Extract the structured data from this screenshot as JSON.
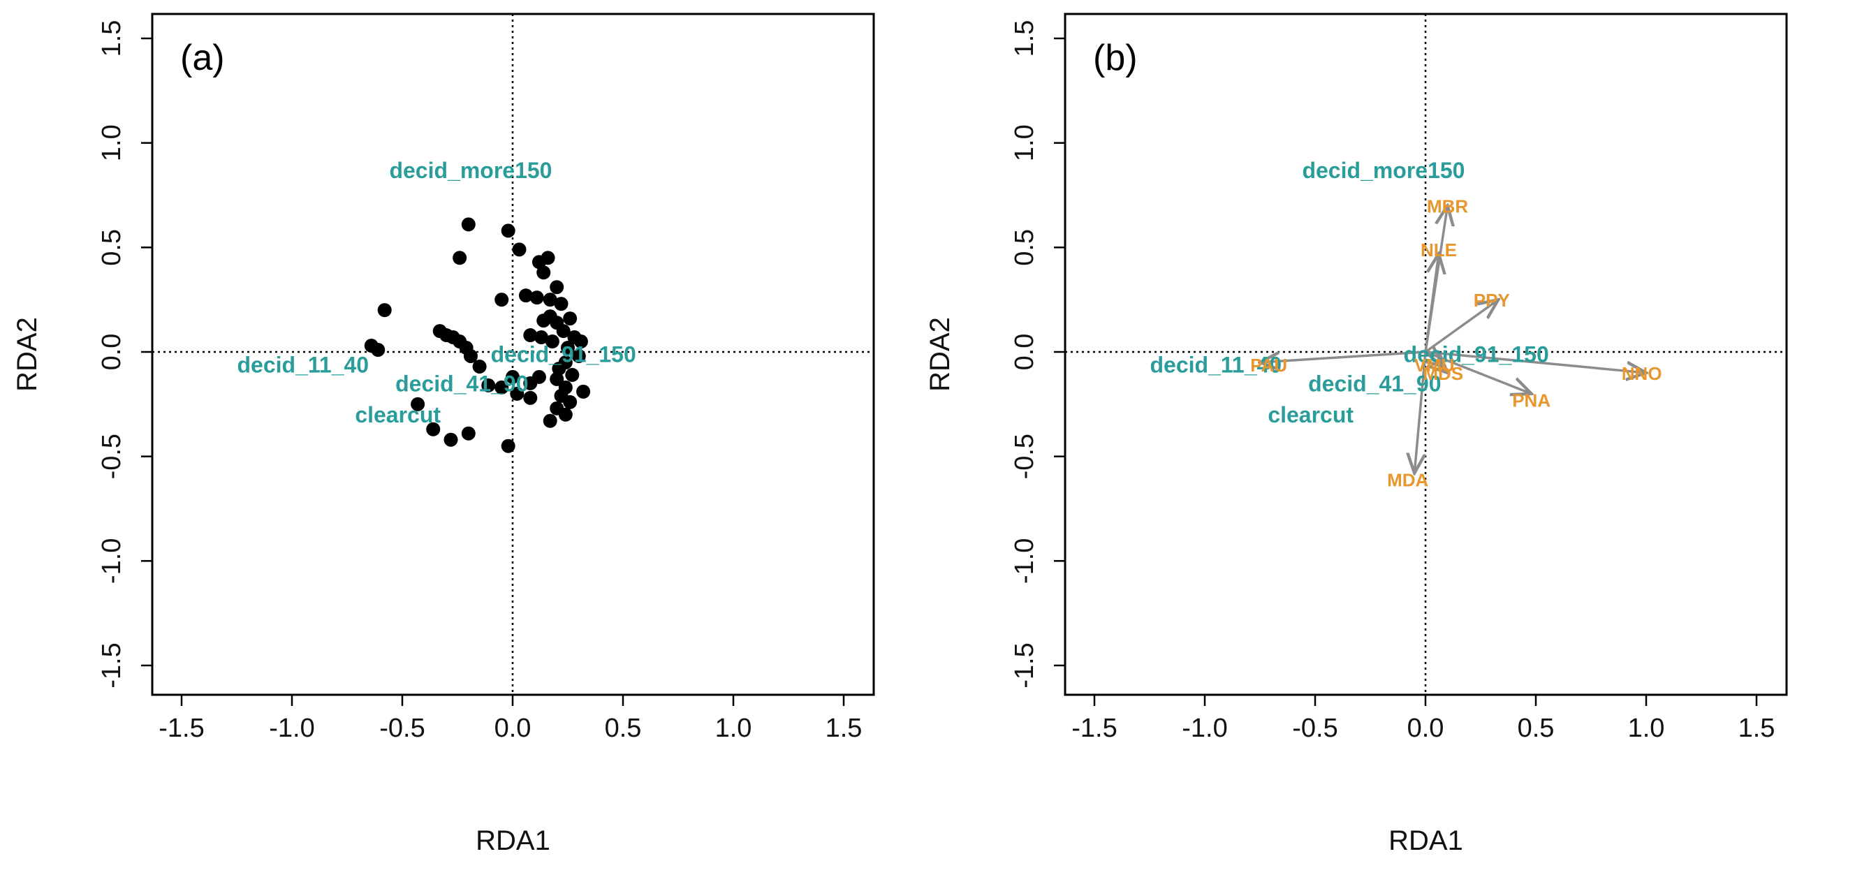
{
  "chart_data": [
    {
      "type": "scatter",
      "panel_label": "(a)",
      "xlabel": "RDA1",
      "ylabel": "RDA2",
      "xlim": [
        -1.5,
        1.5
      ],
      "ylim": [
        -1.5,
        1.5
      ],
      "xticks": [
        -1.5,
        -1.0,
        -0.5,
        0.0,
        0.5,
        1.0,
        1.5
      ],
      "yticks": [
        -1.5,
        -1.0,
        -0.5,
        0.0,
        0.5,
        1.0,
        1.5
      ],
      "xtick_labels": [
        "-1.5",
        "-1.0",
        "-0.5",
        "0.0",
        "0.5",
        "1.0",
        "1.5"
      ],
      "ytick_labels": [
        "-1.5",
        "-1.0",
        "-0.5",
        "0.0",
        "0.5",
        "1.0",
        "1.5"
      ],
      "zero_lines": true,
      "site_color": "#2a9d9b",
      "point_color": "#000000",
      "site_labels": [
        {
          "text": "decid_more150",
          "x": -0.19,
          "y": 0.86
        },
        {
          "text": "decid_11_40",
          "x": -0.95,
          "y": -0.07
        },
        {
          "text": "decid_91_150",
          "x": 0.23,
          "y": -0.02
        },
        {
          "text": "decid_41_90",
          "x": -0.23,
          "y": -0.16
        },
        {
          "text": "clearcut",
          "x": -0.52,
          "y": -0.31
        }
      ],
      "points": [
        {
          "x": -0.2,
          "y": 0.61
        },
        {
          "x": -0.02,
          "y": 0.58
        },
        {
          "x": 0.03,
          "y": 0.49
        },
        {
          "x": -0.24,
          "y": 0.45
        },
        {
          "x": 0.12,
          "y": 0.43
        },
        {
          "x": 0.16,
          "y": 0.45
        },
        {
          "x": 0.2,
          "y": 0.31
        },
        {
          "x": 0.14,
          "y": 0.38
        },
        {
          "x": 0.17,
          "y": 0.25
        },
        {
          "x": -0.05,
          "y": 0.25
        },
        {
          "x": 0.11,
          "y": 0.26
        },
        {
          "x": 0.06,
          "y": 0.27
        },
        {
          "x": 0.22,
          "y": 0.23
        },
        {
          "x": 0.17,
          "y": 0.17
        },
        {
          "x": 0.2,
          "y": 0.14
        },
        {
          "x": 0.14,
          "y": 0.15
        },
        {
          "x": 0.26,
          "y": 0.16
        },
        {
          "x": 0.23,
          "y": 0.1
        },
        {
          "x": -0.58,
          "y": 0.2
        },
        {
          "x": -0.33,
          "y": 0.1
        },
        {
          "x": -0.3,
          "y": 0.08
        },
        {
          "x": -0.27,
          "y": 0.07
        },
        {
          "x": -0.24,
          "y": 0.05
        },
        {
          "x": -0.21,
          "y": 0.02
        },
        {
          "x": -0.64,
          "y": 0.03
        },
        {
          "x": -0.61,
          "y": 0.01
        },
        {
          "x": -0.19,
          "y": -0.02
        },
        {
          "x": -0.15,
          "y": -0.07
        },
        {
          "x": 0.08,
          "y": 0.08
        },
        {
          "x": 0.13,
          "y": 0.07
        },
        {
          "x": 0.18,
          "y": 0.05
        },
        {
          "x": 0.28,
          "y": 0.07
        },
        {
          "x": 0.31,
          "y": 0.05
        },
        {
          "x": 0.25,
          "y": 0.02
        },
        {
          "x": 0.3,
          "y": -0.02
        },
        {
          "x": 0.24,
          "y": -0.05
        },
        {
          "x": 0.21,
          "y": -0.08
        },
        {
          "x": 0.27,
          "y": -0.11
        },
        {
          "x": 0.2,
          "y": -0.13
        },
        {
          "x": 0.24,
          "y": -0.17
        },
        {
          "x": 0.32,
          "y": -0.19
        },
        {
          "x": 0.22,
          "y": -0.21
        },
        {
          "x": 0.26,
          "y": -0.24
        },
        {
          "x": 0.2,
          "y": -0.27
        },
        {
          "x": 0.24,
          "y": -0.3
        },
        {
          "x": 0.17,
          "y": -0.33
        },
        {
          "x": 0.12,
          "y": -0.12
        },
        {
          "x": 0.08,
          "y": -0.15
        },
        {
          "x": 0.0,
          "y": -0.12
        },
        {
          "x": -0.05,
          "y": -0.17
        },
        {
          "x": 0.02,
          "y": -0.2
        },
        {
          "x": 0.08,
          "y": -0.22
        },
        {
          "x": -0.11,
          "y": -0.16
        },
        {
          "x": -0.43,
          "y": -0.25
        },
        {
          "x": -0.36,
          "y": -0.37
        },
        {
          "x": -0.28,
          "y": -0.42
        },
        {
          "x": -0.2,
          "y": -0.39
        },
        {
          "x": -0.02,
          "y": -0.45
        }
      ]
    },
    {
      "type": "biplot",
      "panel_label": "(b)",
      "xlabel": "RDA1",
      "ylabel": "RDA2",
      "xlim": [
        -1.5,
        1.5
      ],
      "ylim": [
        -1.5,
        1.5
      ],
      "xticks": [
        -1.5,
        -1.0,
        -0.5,
        0.0,
        0.5,
        1.0,
        1.5
      ],
      "yticks": [
        -1.5,
        -1.0,
        -0.5,
        0.0,
        0.5,
        1.0,
        1.5
      ],
      "xtick_labels": [
        "-1.5",
        "-1.0",
        "-0.5",
        "0.0",
        "0.5",
        "1.0",
        "1.5"
      ],
      "ytick_labels": [
        "-1.5",
        "-1.0",
        "-0.5",
        "0.0",
        "0.5",
        "1.0",
        "1.5"
      ],
      "zero_lines": true,
      "site_color": "#2a9d9b",
      "species_color": "#e8962e",
      "arrow_color": "#8c8c8c",
      "site_labels": [
        {
          "text": "decid_more150",
          "x": -0.19,
          "y": 0.86
        },
        {
          "text": "decid_11_40",
          "x": -0.95,
          "y": -0.07
        },
        {
          "text": "decid_91_150",
          "x": 0.23,
          "y": -0.02
        },
        {
          "text": "decid_41_90",
          "x": -0.23,
          "y": -0.16
        },
        {
          "text": "clearcut",
          "x": -0.52,
          "y": -0.31
        }
      ],
      "species_arrows": [
        {
          "name": "MBR",
          "x": 0.1,
          "y": 0.7
        },
        {
          "name": "NLE",
          "x": 0.06,
          "y": 0.47
        },
        {
          "name": "PPY",
          "x": 0.33,
          "y": 0.25
        },
        {
          "name": "PAU",
          "x": -0.75,
          "y": -0.05
        },
        {
          "name": "NNO",
          "x": 1.0,
          "y": -0.1
        },
        {
          "name": "PNA",
          "x": 0.48,
          "y": -0.2
        },
        {
          "name": "MDA",
          "x": -0.05,
          "y": -0.58
        },
        {
          "name": "VMU",
          "x": 0.08,
          "y": -0.07
        },
        {
          "name": "MDS",
          "x": 0.1,
          "y": -0.1
        }
      ],
      "species_labels": [
        {
          "text": "MBR",
          "x": 0.1,
          "y": 0.69
        },
        {
          "text": "NLE",
          "x": 0.06,
          "y": 0.48
        },
        {
          "text": "PPY",
          "x": 0.3,
          "y": 0.24
        },
        {
          "text": "PAU",
          "x": -0.71,
          "y": -0.07
        },
        {
          "text": "NNO",
          "x": 0.98,
          "y": -0.11
        },
        {
          "text": "PNA",
          "x": 0.48,
          "y": -0.24
        },
        {
          "text": "MDA",
          "x": -0.08,
          "y": -0.62
        },
        {
          "text": "VMU",
          "x": 0.04,
          "y": -0.07
        },
        {
          "text": "MDS",
          "x": 0.08,
          "y": -0.11
        }
      ]
    }
  ]
}
